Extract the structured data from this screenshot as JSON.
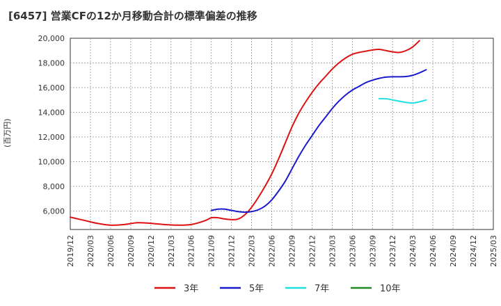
{
  "chart_data": {
    "type": "line",
    "title": "[6457]  営業CFの12か月移動合計の標準偏差の推移",
    "ylabel": "(百万円)",
    "xlabel": "",
    "ylim": [
      4500,
      20000
    ],
    "yticks": [
      6000,
      8000,
      10000,
      12000,
      14000,
      16000,
      18000,
      20000
    ],
    "ytick_labels": [
      "6,000",
      "8,000",
      "10,000",
      "12,000",
      "14,000",
      "16,000",
      "18,000",
      "20,000"
    ],
    "x_ticks": [
      "2019/12",
      "2020/03",
      "2020/06",
      "2020/09",
      "2020/12",
      "2021/03",
      "2021/06",
      "2021/09",
      "2021/12",
      "2022/03",
      "2022/06",
      "2022/09",
      "2022/12",
      "2023/03",
      "2023/06",
      "2023/09",
      "2023/12",
      "2024/03",
      "2024/06",
      "2024/09",
      "2024/12",
      "2025/03"
    ],
    "grid": true,
    "legend_position": "bottom",
    "series": [
      {
        "name": "3年",
        "color": "#dd1111",
        "points": [
          [
            "2019/12",
            5500
          ],
          [
            "2020/02",
            5250
          ],
          [
            "2020/04",
            5000
          ],
          [
            "2020/06",
            4850
          ],
          [
            "2020/08",
            4900
          ],
          [
            "2020/10",
            5050
          ],
          [
            "2020/12",
            5000
          ],
          [
            "2021/02",
            4900
          ],
          [
            "2021/04",
            4850
          ],
          [
            "2021/06",
            4900
          ],
          [
            "2021/08",
            5200
          ],
          [
            "2021/09",
            5450
          ],
          [
            "2021/10",
            5450
          ],
          [
            "2021/11",
            5350
          ],
          [
            "2021/12",
            5300
          ],
          [
            "2022/01",
            5350
          ],
          [
            "2022/02",
            5700
          ],
          [
            "2022/03",
            6300
          ],
          [
            "2022/04",
            7100
          ],
          [
            "2022/05",
            8000
          ],
          [
            "2022/06",
            9000
          ],
          [
            "2022/07",
            10200
          ],
          [
            "2022/08",
            11500
          ],
          [
            "2022/09",
            12800
          ],
          [
            "2022/10",
            13900
          ],
          [
            "2022/11",
            14800
          ],
          [
            "2022/12",
            15600
          ],
          [
            "2023/01",
            16300
          ],
          [
            "2023/02",
            16900
          ],
          [
            "2023/03",
            17500
          ],
          [
            "2023/04",
            18000
          ],
          [
            "2023/05",
            18400
          ],
          [
            "2023/06",
            18700
          ],
          [
            "2023/07",
            18850
          ],
          [
            "2023/08",
            18950
          ],
          [
            "2023/09",
            19050
          ],
          [
            "2023/10",
            19100
          ],
          [
            "2023/11",
            19000
          ],
          [
            "2023/12",
            18900
          ],
          [
            "2024/01",
            18850
          ],
          [
            "2024/02",
            19000
          ],
          [
            "2024/03",
            19300
          ],
          [
            "2024/04",
            19800
          ]
        ]
      },
      {
        "name": "5年",
        "color": "#1a1acc",
        "points": [
          [
            "2021/09",
            6050
          ],
          [
            "2021/10",
            6150
          ],
          [
            "2021/11",
            6150
          ],
          [
            "2021/12",
            6050
          ],
          [
            "2022/01",
            5950
          ],
          [
            "2022/02",
            5900
          ],
          [
            "2022/03",
            5950
          ],
          [
            "2022/04",
            6100
          ],
          [
            "2022/05",
            6400
          ],
          [
            "2022/06",
            6900
          ],
          [
            "2022/07",
            7600
          ],
          [
            "2022/08",
            8400
          ],
          [
            "2022/09",
            9400
          ],
          [
            "2022/10",
            10400
          ],
          [
            "2022/11",
            11300
          ],
          [
            "2022/12",
            12100
          ],
          [
            "2023/01",
            12900
          ],
          [
            "2023/02",
            13600
          ],
          [
            "2023/03",
            14300
          ],
          [
            "2023/04",
            14900
          ],
          [
            "2023/05",
            15400
          ],
          [
            "2023/06",
            15800
          ],
          [
            "2023/07",
            16100
          ],
          [
            "2023/08",
            16400
          ],
          [
            "2023/09",
            16600
          ],
          [
            "2023/10",
            16750
          ],
          [
            "2023/11",
            16850
          ],
          [
            "2023/12",
            16880
          ],
          [
            "2024/01",
            16880
          ],
          [
            "2024/02",
            16900
          ],
          [
            "2024/03",
            17000
          ],
          [
            "2024/04",
            17200
          ],
          [
            "2024/05",
            17450
          ]
        ]
      },
      {
        "name": "7年",
        "color": "#22e0e0",
        "points": [
          [
            "2023/10",
            15100
          ],
          [
            "2023/11",
            15100
          ],
          [
            "2023/12",
            15000
          ],
          [
            "2024/01",
            14900
          ],
          [
            "2024/02",
            14800
          ],
          [
            "2024/03",
            14750
          ],
          [
            "2024/04",
            14850
          ],
          [
            "2024/05",
            15000
          ]
        ]
      },
      {
        "name": "10年",
        "color": "#228822",
        "points": []
      }
    ]
  }
}
